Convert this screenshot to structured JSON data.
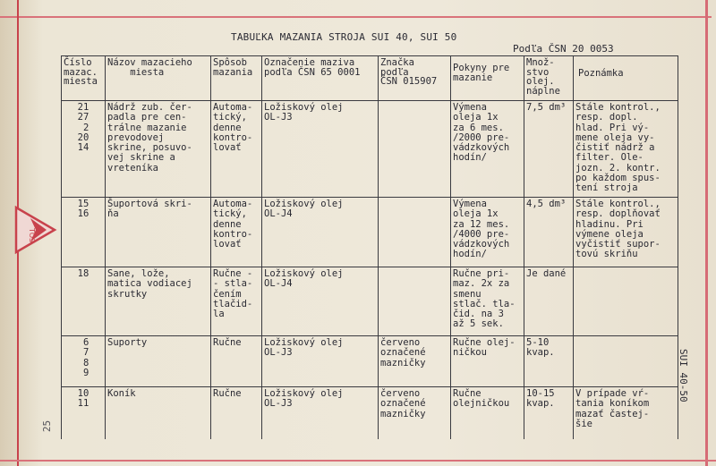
{
  "title": "TABUĽKA MAZANIA STROJA SUI 40, SUI 50",
  "norm": "Podľa ČSN 20 0053",
  "logo": {
    "text": "TOS",
    "color": "#c8424c"
  },
  "side_label": "SUI 40-50",
  "page_number": "25",
  "headers": [
    "Číslo\nmazac.\nmiesta",
    "Názov mazacieho\n    miesta",
    "Spôsob\nmazania",
    "Označenie maziva\npodľa ČSN 65 0001",
    "Značka\npodľa\nČSN 015907",
    "Pokyny pre\nmazanie",
    "Množ-\nstvo\nolej.\nnáplne",
    "Poznámka"
  ],
  "rows": [
    [
      "21\n27\n 2\n20\n14",
      "Nádrž zub. čer-\npadla pre cen-\ntrálne mazanie\nprevodovej\nskrine, posuvo-\nvej skrine a\nvreteníka",
      "Automa-\ntický,\ndenne\nkontro-\nlovať",
      "Ložiskový olej\nOL-J3",
      "",
      "Výmena\noleja 1x\nza 6 mes.\n/2000 pre-\nvádzkových\nhodín/",
      "7,5 dm³",
      "Stále kontrol.,\nresp. dopl.\nhlad. Pri vý-\nmene oleja vy-\nčistiť nádrž a\nfilter. Ole-\njozn. 2. kontr.\npo každom spus-\ntení stroja"
    ],
    [
      "15\n16",
      "Šuportová skri-\nňa",
      "Automa-\ntický,\ndenne\nkontro-\nlovať",
      "Ložiskový olej\nOL-J4",
      "",
      "Výmena\noleja 1x\nza 12 mes.\n/4000 pre-\nvádzkových\nhodín/",
      "4,5 dm³",
      "Stále kontrol.,\nresp. doplňovať\nhladinu. Pri\nvýmene oleja\nvyčistiť supor-\ntovú skriňu"
    ],
    [
      "18",
      "Sane, lože,\nmatica vodiacej\nskrutky",
      "Ručne -\n- stla-\nčením\ntlačid-\nla",
      "Ložiskový olej\nOL-J4",
      "",
      "Ručne pri-\nmaz. 2x za\nsmenu\nstlač. tla-\nčid. na 3\naž 5 sek.",
      "Je dané",
      ""
    ],
    [
      " 6\n 7\n 8\n 9",
      "Suporty",
      "Ručne",
      "Ložiskový olej\nOL-J3",
      "červeno\noznačené\nmazničky",
      "Ručne olej-\nničkou",
      "5-10\nkvap.",
      ""
    ],
    [
      "10\n11",
      "Koník",
      "Ručne",
      "Ložiskový olej\nOL-J3",
      "červeno\noznačené\nmazničky",
      "Ručne\nolejničkou",
      "10-15\nkvap.",
      "V prípade vŕ-\ntania koníkom\nmazať častej-\nšie"
    ]
  ]
}
